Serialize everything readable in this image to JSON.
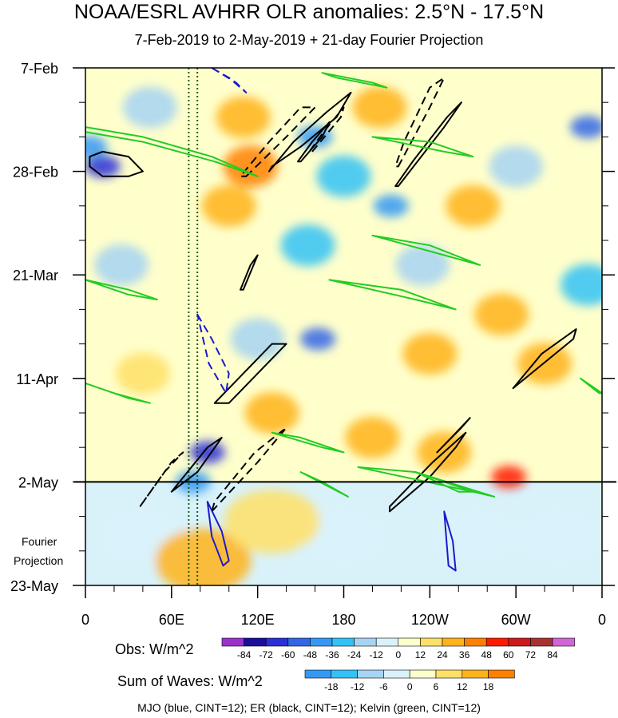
{
  "title": "NOAA/ESRL AVHRR OLR anomalies: 2.5°N - 17.5°N",
  "subtitle": "7-Feb-2019 to 2-May-2019 + 21-day Fourier Projection",
  "projection_label_line1": "Fourier",
  "projection_label_line2": "Projection",
  "legend_note": "MJO (blue, CINT=12); ER (black, CINT=12); Kelvin (green, CINT=12)",
  "colorbars": {
    "obs": {
      "title": "Obs: W/m^2",
      "labels": [
        "-84",
        "-72",
        "-60",
        "-48",
        "-36",
        "-24",
        "-12",
        "0",
        "12",
        "24",
        "36",
        "48",
        "60",
        "72",
        "84"
      ],
      "colors": [
        "#9933cc",
        "#1a0f9c",
        "#2a2fd6",
        "#3366e6",
        "#3399f5",
        "#33c2f5",
        "#a6d4f2",
        "#d9f2fa",
        "#ffffcc",
        "#ffe066",
        "#ffb31a",
        "#ff8000",
        "#ff1a00",
        "#cc1a1a",
        "#a83232",
        "#d066d6"
      ]
    },
    "waves": {
      "title": "Sum of Waves: W/m^2",
      "labels": [
        "-18",
        "-12",
        "-6",
        "0",
        "6",
        "12",
        "18"
      ],
      "colors": [
        "#3399f5",
        "#33c2f5",
        "#a6d4f2",
        "#d9f2fa",
        "#ffffcc",
        "#ffe066",
        "#ffb31a",
        "#ff8000"
      ]
    }
  },
  "chart_data": {
    "type": "heatmap",
    "x_tick_labels": [
      "0",
      "60E",
      "120E",
      "180",
      "120W",
      "60W",
      "0"
    ],
    "x_ticks_deg": [
      0,
      60,
      120,
      180,
      240,
      300,
      360
    ],
    "xlim_deg": [
      0,
      360
    ],
    "y_tick_labels": [
      "7-Feb",
      "28-Feb",
      "21-Mar",
      "11-Apr",
      "2-May",
      "23-May"
    ],
    "y_ticks_day": [
      0,
      21,
      42,
      63,
      84,
      105
    ],
    "ylim_day": [
      0,
      105
    ],
    "observed_end_day": 84,
    "reference_lon_deg": [
      72,
      78
    ],
    "features": [
      {
        "kind": "obs",
        "lon": 12,
        "day": 20,
        "value": -72
      },
      {
        "kind": "obs",
        "lon": 3,
        "day": 16,
        "value": -48
      },
      {
        "kind": "obs",
        "lon": 45,
        "day": 8,
        "value": -24
      },
      {
        "kind": "obs",
        "lon": 25,
        "day": 40,
        "value": -24
      },
      {
        "kind": "obs",
        "lon": 160,
        "day": 14,
        "value": -48
      },
      {
        "kind": "obs",
        "lon": 155,
        "day": 36,
        "value": -36
      },
      {
        "kind": "obs",
        "lon": 180,
        "day": 22,
        "value": -36
      },
      {
        "kind": "obs",
        "lon": 213,
        "day": 28,
        "value": -48
      },
      {
        "kind": "obs",
        "lon": 235,
        "day": 40,
        "value": -24
      },
      {
        "kind": "obs",
        "lon": 162,
        "day": 55,
        "value": -60
      },
      {
        "kind": "obs",
        "lon": 85,
        "day": 78,
        "value": -72
      },
      {
        "kind": "obs",
        "lon": 75,
        "day": 84,
        "value": -48
      },
      {
        "kind": "obs",
        "lon": 350,
        "day": 12,
        "value": -60
      },
      {
        "kind": "obs",
        "lon": 350,
        "day": 44,
        "value": -36
      },
      {
        "kind": "obs",
        "lon": 120,
        "day": 55,
        "value": -24
      },
      {
        "kind": "obs",
        "lon": 300,
        "day": 20,
        "value": -24
      },
      {
        "kind": "obs",
        "lon": 110,
        "day": 10,
        "value": 24
      },
      {
        "kind": "obs",
        "lon": 115,
        "day": 20,
        "value": 36
      },
      {
        "kind": "obs",
        "lon": 100,
        "day": 28,
        "value": 24
      },
      {
        "kind": "obs",
        "lon": 205,
        "day": 8,
        "value": 24
      },
      {
        "kind": "obs",
        "lon": 240,
        "day": 58,
        "value": 24
      },
      {
        "kind": "obs",
        "lon": 250,
        "day": 78,
        "value": 24
      },
      {
        "kind": "obs",
        "lon": 290,
        "day": 50,
        "value": 24
      },
      {
        "kind": "obs",
        "lon": 200,
        "day": 75,
        "value": 24
      },
      {
        "kind": "obs",
        "lon": 320,
        "day": 60,
        "value": 24
      },
      {
        "kind": "obs",
        "lon": 40,
        "day": 62,
        "value": 12
      },
      {
        "kind": "obs",
        "lon": 270,
        "day": 28,
        "value": 24
      },
      {
        "kind": "obs",
        "lon": 130,
        "day": 70,
        "value": 24
      },
      {
        "kind": "obs",
        "lon": 295,
        "day": 83,
        "value": 48
      },
      {
        "kind": "proj",
        "lon": 180,
        "day": 95,
        "value": -6
      },
      {
        "kind": "proj",
        "lon": 270,
        "day": 95,
        "value": -6
      },
      {
        "kind": "proj",
        "lon": 40,
        "day": 95,
        "value": -6
      },
      {
        "kind": "proj",
        "lon": 330,
        "day": 95,
        "value": -6
      },
      {
        "kind": "proj",
        "lon": 82,
        "day": 100,
        "value": 12
      },
      {
        "kind": "proj",
        "lon": 130,
        "day": 92,
        "value": 6
      }
    ],
    "contours": [
      {
        "wave": "ER",
        "style": "solid",
        "points": [
          [
            130,
            20
          ],
          [
            150,
            16
          ],
          [
            175,
            10
          ],
          [
            185,
            5
          ],
          [
            168,
            9
          ],
          [
            145,
            15
          ],
          [
            128,
            21
          ]
        ]
      },
      {
        "wave": "ER",
        "style": "solid",
        "points": [
          [
            150,
            19
          ],
          [
            165,
            14
          ],
          [
            170,
            11
          ],
          [
            158,
            15
          ],
          [
            148,
            19
          ]
        ]
      },
      {
        "wave": "ER",
        "style": "dashed",
        "points": [
          [
            112,
            22
          ],
          [
            140,
            14
          ],
          [
            160,
            8
          ],
          [
            150,
            8
          ],
          [
            128,
            15
          ],
          [
            108,
            22
          ]
        ]
      },
      {
        "wave": "ER",
        "style": "dashed",
        "points": [
          [
            158,
            17
          ],
          [
            178,
            10
          ],
          [
            180,
            8
          ],
          [
            166,
            13
          ],
          [
            156,
            17
          ]
        ]
      },
      {
        "wave": "ER",
        "style": "dashed",
        "points": [
          [
            218,
            20
          ],
          [
            240,
            8
          ],
          [
            250,
            2
          ],
          [
            240,
            4
          ],
          [
            222,
            15
          ],
          [
            216,
            20
          ]
        ]
      },
      {
        "wave": "ER",
        "style": "solid",
        "points": [
          [
            218,
            24
          ],
          [
            250,
            12
          ],
          [
            262,
            7
          ],
          [
            252,
            10
          ],
          [
            228,
            19
          ],
          [
            216,
            24
          ]
        ]
      },
      {
        "wave": "ER",
        "style": "solid",
        "points": [
          [
            3,
            20
          ],
          [
            12,
            22
          ],
          [
            30,
            22
          ],
          [
            40,
            21
          ],
          [
            30,
            18
          ],
          [
            12,
            17
          ],
          [
            3,
            18
          ]
        ]
      },
      {
        "wave": "ER",
        "style": "solid",
        "points": [
          [
            110,
            45
          ],
          [
            120,
            38
          ],
          [
            115,
            40
          ],
          [
            108,
            45
          ]
        ]
      },
      {
        "wave": "ER",
        "style": "solid",
        "points": [
          [
            90,
            68
          ],
          [
            130,
            56
          ],
          [
            140,
            56
          ],
          [
            100,
            68
          ],
          [
            90,
            68
          ]
        ]
      },
      {
        "wave": "ER",
        "style": "solid",
        "points": [
          [
            298,
            65
          ],
          [
            340,
            55
          ],
          [
            342,
            53
          ],
          [
            318,
            58
          ],
          [
            298,
            65
          ]
        ]
      },
      {
        "wave": "ER",
        "style": "solid",
        "points": [
          [
            60,
            86
          ],
          [
            85,
            77
          ],
          [
            95,
            75
          ],
          [
            78,
            82
          ],
          [
            60,
            86
          ]
        ]
      },
      {
        "wave": "ER",
        "style": "dashed",
        "points": [
          [
            38,
            89
          ],
          [
            60,
            80
          ],
          [
            68,
            78
          ],
          [
            55,
            82
          ],
          [
            38,
            89
          ]
        ]
      },
      {
        "wave": "ER",
        "style": "dashed",
        "points": [
          [
            88,
            90
          ],
          [
            120,
            80
          ],
          [
            140,
            73
          ],
          [
            118,
            78
          ],
          [
            90,
            88
          ]
        ]
      },
      {
        "wave": "ER",
        "style": "solid",
        "points": [
          [
            212,
            90
          ],
          [
            240,
            83
          ],
          [
            258,
            77
          ],
          [
            265,
            74
          ],
          [
            242,
            80
          ],
          [
            212,
            89
          ]
        ]
      },
      {
        "wave": "ER",
        "style": "solid",
        "points": [
          [
            245,
            78
          ],
          [
            262,
            73
          ],
          [
            268,
            71
          ],
          [
            255,
            75
          ],
          [
            245,
            78
          ]
        ]
      },
      {
        "wave": "MJO",
        "style": "dashed",
        "points": [
          [
            88,
            0
          ],
          [
            105,
            3
          ],
          [
            112,
            5
          ],
          [
            100,
            2
          ],
          [
            88,
            0
          ]
        ]
      },
      {
        "wave": "MJO",
        "style": "dashed",
        "points": [
          [
            78,
            50
          ],
          [
            88,
            55
          ],
          [
            100,
            62
          ],
          [
            98,
            66
          ],
          [
            86,
            60
          ],
          [
            78,
            50
          ]
        ]
      },
      {
        "wave": "MJO",
        "style": "solid",
        "points": [
          [
            85,
            88
          ],
          [
            95,
            94
          ],
          [
            100,
            100
          ],
          [
            96,
            101
          ],
          [
            88,
            95
          ],
          [
            85,
            88
          ]
        ]
      },
      {
        "wave": "MJO",
        "style": "solid",
        "points": [
          [
            250,
            90
          ],
          [
            256,
            96
          ],
          [
            258,
            102
          ],
          [
            253,
            101
          ],
          [
            250,
            90
          ]
        ]
      },
      {
        "wave": "Kelvin",
        "style": "solid",
        "points": [
          [
            0,
            13
          ],
          [
            40,
            15
          ],
          [
            90,
            19
          ],
          [
            120,
            22
          ],
          [
            88,
            18
          ],
          [
            40,
            14
          ],
          [
            0,
            12
          ]
        ]
      },
      {
        "wave": "Kelvin",
        "style": "solid",
        "points": [
          [
            165,
            1
          ],
          [
            200,
            3
          ],
          [
            210,
            4
          ],
          [
            175,
            2
          ],
          [
            165,
            1
          ]
        ]
      },
      {
        "wave": "Kelvin",
        "style": "solid",
        "points": [
          [
            200,
            14
          ],
          [
            250,
            17
          ],
          [
            270,
            18
          ],
          [
            240,
            15
          ],
          [
            200,
            14
          ]
        ]
      },
      {
        "wave": "Kelvin",
        "style": "solid",
        "points": [
          [
            200,
            34
          ],
          [
            250,
            38
          ],
          [
            275,
            40
          ],
          [
            240,
            36
          ],
          [
            200,
            34
          ]
        ]
      },
      {
        "wave": "Kelvin",
        "style": "solid",
        "points": [
          [
            170,
            43
          ],
          [
            230,
            47
          ],
          [
            258,
            49
          ],
          [
            220,
            45
          ],
          [
            170,
            43
          ]
        ]
      },
      {
        "wave": "Kelvin",
        "style": "solid",
        "points": [
          [
            0,
            43
          ],
          [
            30,
            46
          ],
          [
            50,
            47
          ],
          [
            30,
            45
          ],
          [
            0,
            43
          ]
        ]
      },
      {
        "wave": "Kelvin",
        "style": "solid",
        "points": [
          [
            0,
            64
          ],
          [
            30,
            67
          ],
          [
            45,
            68
          ],
          [
            20,
            66
          ],
          [
            0,
            64
          ]
        ]
      },
      {
        "wave": "Kelvin",
        "style": "solid",
        "points": [
          [
            345,
            63
          ],
          [
            358,
            66
          ],
          [
            360,
            66
          ],
          [
            345,
            63
          ]
        ]
      },
      {
        "wave": "Kelvin",
        "style": "solid",
        "points": [
          [
            190,
            81
          ],
          [
            270,
            86
          ],
          [
            285,
            87
          ],
          [
            230,
            82
          ],
          [
            190,
            81
          ]
        ]
      },
      {
        "wave": "Kelvin",
        "style": "solid",
        "points": [
          [
            230,
            82
          ],
          [
            260,
            86
          ],
          [
            270,
            86
          ],
          [
            240,
            83
          ],
          [
            230,
            82
          ]
        ]
      },
      {
        "wave": "Kelvin",
        "style": "solid",
        "points": [
          [
            150,
            82
          ],
          [
            183,
            87
          ],
          [
            165,
            84
          ],
          [
            150,
            82
          ]
        ]
      },
      {
        "wave": "Kelvin",
        "style": "solid",
        "points": [
          [
            130,
            74
          ],
          [
            165,
            77
          ],
          [
            180,
            78
          ],
          [
            150,
            75
          ],
          [
            130,
            74
          ]
        ]
      }
    ]
  }
}
